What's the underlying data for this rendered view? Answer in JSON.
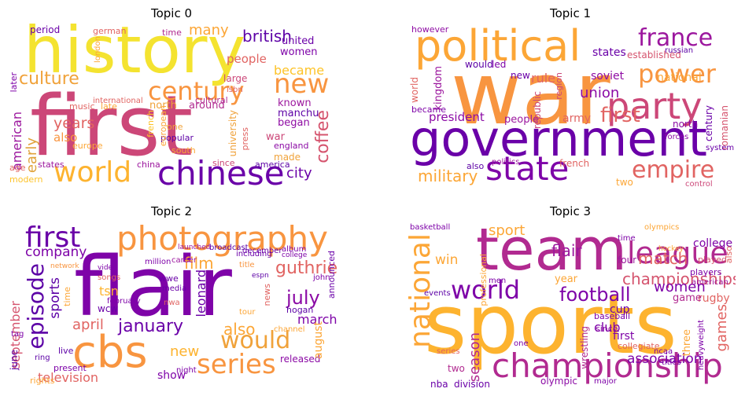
{
  "panels": [
    {
      "title": "Topic 0",
      "words": [
        {
          "text": "history",
          "color": "#f4e330"
        },
        {
          "text": "first",
          "color": "#cc4778"
        },
        {
          "text": "chinese",
          "color": "#6a00a8"
        },
        {
          "text": "world",
          "color": "#fdb32f"
        },
        {
          "text": "century",
          "color": "#f89540"
        },
        {
          "text": "new",
          "color": "#f89540"
        },
        {
          "text": "culture",
          "color": "#f0a23a"
        },
        {
          "text": "british",
          "color": "#5c01a6"
        },
        {
          "text": "became",
          "color": "#fdc328"
        },
        {
          "text": "american",
          "color": "#9c179e"
        },
        {
          "text": "years",
          "color": "#e16462"
        },
        {
          "text": "early",
          "color": "#e0a33b"
        },
        {
          "text": "coffee",
          "color": "#d5546e"
        },
        {
          "text": "city",
          "color": "#6a00a8"
        },
        {
          "text": "many",
          "color": "#fca636"
        },
        {
          "text": "people",
          "color": "#e16462"
        },
        {
          "text": "women",
          "color": "#7e03a8"
        },
        {
          "text": "united",
          "color": "#6a00a8"
        },
        {
          "text": "known",
          "color": "#9c179e"
        },
        {
          "text": "began",
          "color": "#8f0da4"
        },
        {
          "text": "manchu",
          "color": "#5c01a6"
        },
        {
          "text": "war",
          "color": "#cc4778"
        },
        {
          "text": "england",
          "color": "#8b0aa5"
        },
        {
          "text": "made",
          "color": "#f0a23a"
        },
        {
          "text": "also",
          "color": "#f89540"
        },
        {
          "text": "states",
          "color": "#9c179e"
        },
        {
          "text": "modern",
          "color": "#fdc328"
        },
        {
          "text": "age",
          "color": "#e16462"
        },
        {
          "text": "period",
          "color": "#6a00a8"
        },
        {
          "text": "german",
          "color": "#e16462"
        },
        {
          "text": "time",
          "color": "#b12a90"
        },
        {
          "text": "london",
          "color": "#fca636"
        },
        {
          "text": "later",
          "color": "#7e03a8"
        },
        {
          "text": "large",
          "color": "#cc4778"
        },
        {
          "text": "isbn",
          "color": "#e16462"
        },
        {
          "text": "cultural",
          "color": "#b12a90"
        },
        {
          "text": "international",
          "color": "#e16462"
        },
        {
          "text": "north",
          "color": "#f0a23a"
        },
        {
          "text": "around",
          "color": "#b12a90"
        },
        {
          "text": "music",
          "color": "#e16462"
        },
        {
          "text": "late",
          "color": "#fca636"
        },
        {
          "text": "one",
          "color": "#f0a23a"
        },
        {
          "text": "popular",
          "color": "#5c01a6"
        },
        {
          "text": "south",
          "color": "#fca636"
        },
        {
          "text": "since",
          "color": "#cc4778"
        },
        {
          "text": "china",
          "color": "#9c179e"
        },
        {
          "text": "america",
          "color": "#5c01a6"
        },
        {
          "text": "europe",
          "color": "#fca636"
        },
        {
          "text": "university",
          "color": "#f0a23a"
        },
        {
          "text": "press",
          "color": "#e16462"
        },
        {
          "text": "french",
          "color": "#fdc328"
        },
        {
          "text": "european",
          "color": "#fca636"
        }
      ]
    },
    {
      "title": "Topic 1",
      "words": [
        {
          "text": "war",
          "color": "#f89540"
        },
        {
          "text": "government",
          "color": "#6a00a8"
        },
        {
          "text": "political",
          "color": "#fca636"
        },
        {
          "text": "party",
          "color": "#cc4778"
        },
        {
          "text": "state",
          "color": "#7e03a8"
        },
        {
          "text": "power",
          "color": "#f89540"
        },
        {
          "text": "france",
          "color": "#9c179e"
        },
        {
          "text": "empire",
          "color": "#e16462"
        },
        {
          "text": "first",
          "color": "#e16462"
        },
        {
          "text": "military",
          "color": "#fca636"
        },
        {
          "text": "union",
          "color": "#8b0aa5"
        },
        {
          "text": "national",
          "color": "#fca636"
        },
        {
          "text": "soviet",
          "color": "#8f0da4"
        },
        {
          "text": "rule",
          "color": "#e16462"
        },
        {
          "text": "states",
          "color": "#6a00a8"
        },
        {
          "text": "established",
          "color": "#d5546e"
        },
        {
          "text": "president",
          "color": "#8b0aa5"
        },
        {
          "text": "army",
          "color": "#e16462"
        },
        {
          "text": "people",
          "color": "#9c179e"
        },
        {
          "text": "kingdom",
          "color": "#9c179e"
        },
        {
          "text": "world",
          "color": "#e16462"
        },
        {
          "text": "republic",
          "color": "#cc4778"
        },
        {
          "text": "new",
          "color": "#6a00a8"
        },
        {
          "text": "would",
          "color": "#5c01a6"
        },
        {
          "text": "led",
          "color": "#7e03a8"
        },
        {
          "text": "however",
          "color": "#8f0da4"
        },
        {
          "text": "became",
          "color": "#7e03a8"
        },
        {
          "text": "also",
          "color": "#5c01a6"
        },
        {
          "text": "french",
          "color": "#e16462"
        },
        {
          "text": "two",
          "color": "#fca636"
        },
        {
          "text": "north",
          "color": "#8b0aa5"
        },
        {
          "text": "century",
          "color": "#6a00a8"
        },
        {
          "text": "romanian",
          "color": "#d5546e"
        },
        {
          "text": "control",
          "color": "#cc4778"
        },
        {
          "text": "region",
          "color": "#cc4778"
        },
        {
          "text": "system",
          "color": "#6a00a8"
        },
        {
          "text": "politics",
          "color": "#9c179e"
        },
        {
          "text": "forces",
          "color": "#8b0aa5"
        },
        {
          "text": "russian",
          "color": "#5c01a6"
        }
      ]
    },
    {
      "title": "Topic 2",
      "words": [
        {
          "text": "flair",
          "color": "#7e03a8"
        },
        {
          "text": "photography",
          "color": "#f89540"
        },
        {
          "text": "cbs",
          "color": "#f89540"
        },
        {
          "text": "first",
          "color": "#6a00a8"
        },
        {
          "text": "episode",
          "color": "#5c01a6"
        },
        {
          "text": "series",
          "color": "#f89540"
        },
        {
          "text": "would",
          "color": "#f0a23a"
        },
        {
          "text": "january",
          "color": "#6a00a8"
        },
        {
          "text": "film",
          "color": "#fca636"
        },
        {
          "text": "april",
          "color": "#e16462"
        },
        {
          "text": "july",
          "color": "#8b0aa5"
        },
        {
          "text": "guthrie",
          "color": "#e16462"
        },
        {
          "text": "also",
          "color": "#fca636"
        },
        {
          "text": "company",
          "color": "#7e03a8"
        },
        {
          "text": "september",
          "color": "#d5546e"
        },
        {
          "text": "march",
          "color": "#7e03a8"
        },
        {
          "text": "sports",
          "color": "#5c01a6"
        },
        {
          "text": "leonard",
          "color": "#6a00a8"
        },
        {
          "text": "new",
          "color": "#fdb32f"
        },
        {
          "text": "television",
          "color": "#e16462"
        },
        {
          "text": "show",
          "color": "#7e03a8"
        },
        {
          "text": "released",
          "color": "#8b0aa5"
        },
        {
          "text": "tsn",
          "color": "#fdb32f"
        },
        {
          "text": "wcw",
          "color": "#6a00a8"
        },
        {
          "text": "august",
          "color": "#fca636"
        },
        {
          "text": "june",
          "color": "#5c01a6"
        },
        {
          "text": "announced",
          "color": "#6a00a8"
        },
        {
          "text": "news",
          "color": "#e16462"
        },
        {
          "text": "hogan",
          "color": "#5c01a6"
        },
        {
          "text": "time",
          "color": "#fca636"
        },
        {
          "text": "wwe",
          "color": "#6a00a8"
        },
        {
          "text": "rights",
          "color": "#fca636"
        },
        {
          "text": "network",
          "color": "#f89540"
        },
        {
          "text": "february",
          "color": "#7e03a8"
        },
        {
          "text": "december",
          "color": "#6a00a8"
        },
        {
          "text": "broadcast",
          "color": "#5c01a6"
        },
        {
          "text": "launched",
          "color": "#9c179e"
        },
        {
          "text": "million",
          "color": "#7e03a8"
        },
        {
          "text": "career",
          "color": "#9c179e"
        },
        {
          "text": "title",
          "color": "#f89540"
        },
        {
          "text": "including",
          "color": "#6a00a8"
        },
        {
          "text": "espn",
          "color": "#5c01a6"
        },
        {
          "text": "media",
          "color": "#6a00a8"
        },
        {
          "text": "night",
          "color": "#7e03a8"
        },
        {
          "text": "live",
          "color": "#5c01a6"
        },
        {
          "text": "present",
          "color": "#7e03a8"
        },
        {
          "text": "songs",
          "color": "#e16462"
        },
        {
          "text": "video",
          "color": "#7e03a8"
        },
        {
          "text": "album",
          "color": "#7e03a8"
        },
        {
          "text": "college",
          "color": "#7e03a8"
        },
        {
          "text": "channel",
          "color": "#fca636"
        },
        {
          "text": "john",
          "color": "#7e03a8"
        },
        {
          "text": "tour",
          "color": "#fca636"
        },
        {
          "text": "nwa",
          "color": "#e16462"
        },
        {
          "text": "ring",
          "color": "#5c01a6"
        },
        {
          "text": "tag",
          "color": "#7e03a8"
        }
      ]
    },
    {
      "title": "Topic 3",
      "words": [
        {
          "text": "sports",
          "color": "#fdb32f"
        },
        {
          "text": "team",
          "color": "#b12a90"
        },
        {
          "text": "championship",
          "color": "#b12a90"
        },
        {
          "text": "national",
          "color": "#fca636"
        },
        {
          "text": "league",
          "color": "#b12a90"
        },
        {
          "text": "world",
          "color": "#7e03a8"
        },
        {
          "text": "championships",
          "color": "#d5546e"
        },
        {
          "text": "football",
          "color": "#7e03a8"
        },
        {
          "text": "match",
          "color": "#e16462"
        },
        {
          "text": "flair",
          "color": "#9c179e"
        },
        {
          "text": "sport",
          "color": "#fca636"
        },
        {
          "text": "women",
          "color": "#7e03a8"
        },
        {
          "text": "games",
          "color": "#e16462"
        },
        {
          "text": "season",
          "color": "#b12a90"
        },
        {
          "text": "association",
          "color": "#7e03a8"
        },
        {
          "text": "win",
          "color": "#fca636"
        },
        {
          "text": "club",
          "color": "#7e03a8"
        },
        {
          "text": "first",
          "color": "#7e03a8"
        },
        {
          "text": "college",
          "color": "#7e03a8"
        },
        {
          "text": "rugby",
          "color": "#e16462"
        },
        {
          "text": "cup",
          "color": "#6a00a8"
        },
        {
          "text": "game",
          "color": "#b12a90"
        },
        {
          "text": "year",
          "color": "#fca636"
        },
        {
          "text": "four",
          "color": "#9c179e"
        },
        {
          "text": "professional",
          "color": "#fca636"
        },
        {
          "text": "olympic",
          "color": "#8b0aa5"
        },
        {
          "text": "nba",
          "color": "#6a00a8"
        },
        {
          "text": "division",
          "color": "#6a00a8"
        },
        {
          "text": "wrestling",
          "color": "#b12a90"
        },
        {
          "text": "three",
          "color": "#fca636"
        },
        {
          "text": "baseball",
          "color": "#7e03a8"
        },
        {
          "text": "since",
          "color": "#8b0aa5"
        },
        {
          "text": "collegiate",
          "color": "#e16462"
        },
        {
          "text": "played",
          "color": "#d5546e"
        },
        {
          "text": "also",
          "color": "#e16462"
        },
        {
          "text": "players",
          "color": "#7e03a8"
        },
        {
          "text": "two",
          "color": "#b12a90"
        },
        {
          "text": "basketball",
          "color": "#7e03a8"
        },
        {
          "text": "olympics",
          "color": "#fca636"
        },
        {
          "text": "american",
          "color": "#9c179e"
        },
        {
          "text": "events",
          "color": "#5c01a6"
        },
        {
          "text": "time",
          "color": "#7e03a8"
        },
        {
          "text": "major",
          "color": "#7e03a8"
        },
        {
          "text": "ncaa",
          "color": "#7e03a8"
        },
        {
          "text": "heavyweight",
          "color": "#7e03a8"
        },
        {
          "text": "one",
          "color": "#7e03a8"
        },
        {
          "text": "titles",
          "color": "#7e03a8"
        },
        {
          "text": "hockey",
          "color": "#fca636"
        },
        {
          "text": "men",
          "color": "#7e03a8"
        },
        {
          "text": "series",
          "color": "#e16462"
        }
      ]
    }
  ]
}
